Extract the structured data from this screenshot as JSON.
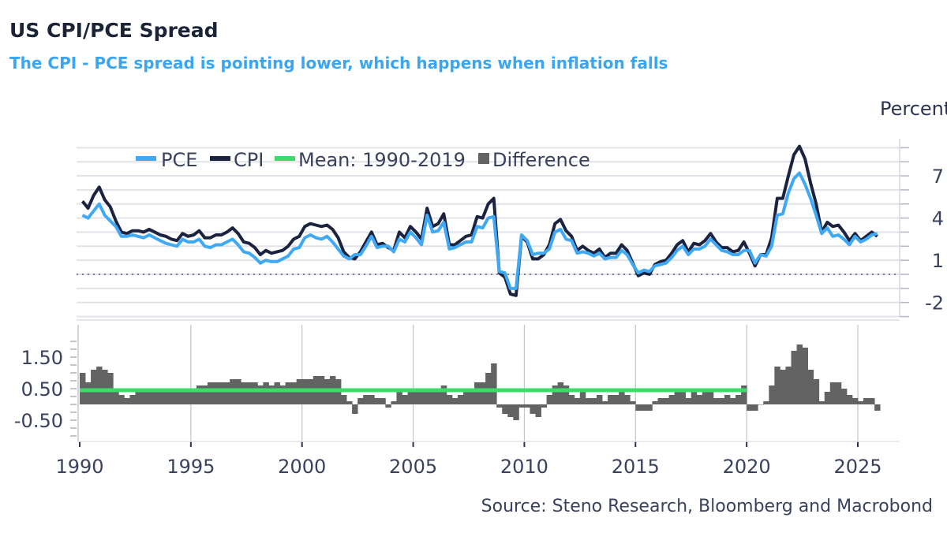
{
  "title": "US CPI/PCE Spread",
  "subtitle": "The CPI - PCE spread is pointing lower, which happens when inflation falls",
  "source": "Source: Steno Research, Bloomberg and Macrobond",
  "colors": {
    "pce": "#3fa9f5",
    "cpi": "#1b2340",
    "mean": "#3ddc6a",
    "difference": "#636363",
    "title": "#1b2336",
    "subtitle": "#3aa6f2"
  },
  "chart_data": [
    {
      "type": "line",
      "ylabel": "Percent",
      "y_axis_side": "right",
      "ylim": [
        -3,
        9
      ],
      "yticks": [
        "7",
        "4",
        "1",
        "-2"
      ],
      "grid": true,
      "legend_position": "top-left",
      "x_start": 1990,
      "x_step": "quarterly",
      "xlim": [
        1990,
        2026.5
      ],
      "legend": [
        "PCE",
        "CPI",
        "Mean: 1990-2019",
        "Difference"
      ],
      "series": [
        {
          "name": "PCE",
          "values": [
            4.2,
            4.0,
            4.5,
            5.0,
            4.2,
            3.8,
            3.4,
            2.7,
            2.7,
            2.8,
            2.7,
            2.6,
            2.8,
            2.6,
            2.4,
            2.2,
            2.1,
            2.0,
            2.5,
            2.3,
            2.3,
            2.5,
            2.0,
            1.9,
            2.1,
            2.1,
            2.3,
            2.5,
            2.1,
            1.6,
            1.5,
            1.2,
            0.8,
            1.0,
            0.9,
            0.9,
            1.1,
            1.3,
            1.8,
            1.9,
            2.6,
            2.8,
            2.6,
            2.5,
            2.7,
            2.3,
            1.8,
            1.3,
            1.1,
            1.4,
            1.4,
            2.0,
            2.7,
            1.9,
            2.0,
            2.0,
            1.6,
            2.5,
            2.3,
            3.0,
            2.6,
            2.1,
            4.2,
            3.0,
            3.1,
            3.7,
            1.8,
            1.9,
            2.1,
            2.3,
            2.3,
            3.4,
            3.3,
            4.0,
            4.1,
            0.2,
            0.1,
            -1.0,
            -1.0,
            2.8,
            2.4,
            1.4,
            1.5,
            1.5,
            1.8,
            3.0,
            3.2,
            2.5,
            2.4,
            1.5,
            1.6,
            1.5,
            1.3,
            1.5,
            1.1,
            1.2,
            1.2,
            1.7,
            1.4,
            0.7,
            0.1,
            0.3,
            0.2,
            0.6,
            0.7,
            0.8,
            1.2,
            1.7,
            2.0,
            1.4,
            1.8,
            1.8,
            2.0,
            2.5,
            2.1,
            1.7,
            1.6,
            1.4,
            1.4,
            1.7,
            1.7,
            0.8,
            1.4,
            1.3,
            2.0,
            4.2,
            4.3,
            5.8,
            6.8,
            7.2,
            6.4,
            5.4,
            4.2,
            2.9,
            3.3,
            2.7,
            2.8,
            2.5,
            2.1,
            2.7,
            2.3,
            2.5,
            2.8,
            2.9
          ]
        },
        {
          "name": "CPI",
          "values": [
            5.2,
            4.7,
            5.6,
            6.2,
            5.3,
            4.8,
            3.8,
            3.0,
            2.9,
            3.1,
            3.1,
            3.0,
            3.2,
            3.0,
            2.8,
            2.7,
            2.5,
            2.4,
            2.9,
            2.7,
            2.8,
            3.1,
            2.6,
            2.6,
            2.8,
            2.8,
            3.0,
            3.3,
            2.9,
            2.3,
            2.2,
            1.9,
            1.4,
            1.7,
            1.5,
            1.6,
            1.7,
            2.0,
            2.5,
            2.7,
            3.4,
            3.6,
            3.5,
            3.4,
            3.5,
            3.2,
            2.6,
            1.6,
            1.2,
            1.1,
            1.6,
            2.3,
            3.0,
            2.1,
            2.2,
            1.9,
            1.7,
            3.0,
            2.6,
            3.4,
            3.0,
            2.5,
            4.7,
            3.4,
            3.6,
            4.3,
            2.1,
            2.1,
            2.4,
            2.7,
            2.8,
            4.1,
            4.0,
            5.0,
            5.4,
            0.1,
            -0.2,
            -1.4,
            -1.5,
            2.7,
            2.3,
            1.1,
            1.1,
            1.4,
            2.1,
            3.6,
            3.9,
            3.1,
            2.7,
            1.7,
            2.0,
            1.7,
            1.5,
            1.8,
            1.2,
            1.5,
            1.5,
            2.1,
            1.7,
            0.8,
            -0.1,
            0.1,
            0.0,
            0.7,
            0.9,
            1.0,
            1.5,
            2.1,
            2.4,
            1.6,
            2.2,
            2.1,
            2.4,
            2.9,
            2.3,
            1.9,
            1.9,
            1.6,
            1.7,
            2.3,
            1.5,
            0.6,
            1.4,
            1.4,
            2.6,
            5.4,
            5.4,
            7.0,
            8.5,
            9.1,
            8.2,
            6.5,
            5.0,
            3.0,
            3.7,
            3.4,
            3.5,
            3.0,
            2.4,
            2.9,
            2.4,
            2.7,
            3.0,
            2.7
          ]
        }
      ]
    },
    {
      "type": "bar",
      "ylim": [
        -1.0,
        2.0
      ],
      "yticks": [
        "1.50",
        "0.50",
        "-0.50"
      ],
      "xticks": [
        "1990",
        "1995",
        "2000",
        "2005",
        "2010",
        "2015",
        "2020",
        "2025"
      ],
      "x_start": 1990,
      "x_step": "quarterly",
      "series": [
        {
          "name": "Difference",
          "values": [
            1.0,
            0.7,
            1.1,
            1.2,
            1.1,
            1.0,
            0.4,
            0.3,
            0.2,
            0.3,
            0.4,
            0.4,
            0.4,
            0.4,
            0.4,
            0.5,
            0.4,
            0.4,
            0.4,
            0.4,
            0.5,
            0.6,
            0.6,
            0.7,
            0.7,
            0.7,
            0.7,
            0.8,
            0.8,
            0.7,
            0.7,
            0.7,
            0.6,
            0.7,
            0.6,
            0.7,
            0.6,
            0.7,
            0.7,
            0.8,
            0.8,
            0.8,
            0.9,
            0.9,
            0.8,
            0.9,
            0.8,
            0.3,
            0.1,
            -0.3,
            0.2,
            0.3,
            0.3,
            0.2,
            0.2,
            -0.1,
            0.1,
            0.5,
            0.3,
            0.4,
            0.4,
            0.4,
            0.5,
            0.4,
            0.5,
            0.6,
            0.3,
            0.2,
            0.3,
            0.4,
            0.5,
            0.7,
            0.7,
            1.0,
            1.3,
            -0.1,
            -0.3,
            -0.4,
            -0.5,
            -0.1,
            -0.1,
            -0.3,
            -0.4,
            -0.1,
            0.3,
            0.6,
            0.7,
            0.6,
            0.3,
            0.2,
            0.4,
            0.2,
            0.2,
            0.3,
            0.1,
            0.3,
            0.3,
            0.4,
            0.3,
            0.1,
            -0.2,
            -0.2,
            -0.2,
            0.1,
            0.2,
            0.2,
            0.3,
            0.4,
            0.4,
            0.2,
            0.4,
            0.3,
            0.4,
            0.4,
            0.2,
            0.2,
            0.3,
            0.2,
            0.3,
            0.6,
            -0.2,
            -0.2,
            0.0,
            0.1,
            0.6,
            1.2,
            1.1,
            1.2,
            1.7,
            1.9,
            1.8,
            1.1,
            0.8,
            0.1,
            0.4,
            0.7,
            0.7,
            0.5,
            0.3,
            0.2,
            0.1,
            0.2,
            0.2,
            -0.2
          ]
        },
        {
          "name": "Mean: 1990-2019",
          "value": 0.45,
          "range": [
            1990,
            2020
          ]
        }
      ]
    }
  ]
}
